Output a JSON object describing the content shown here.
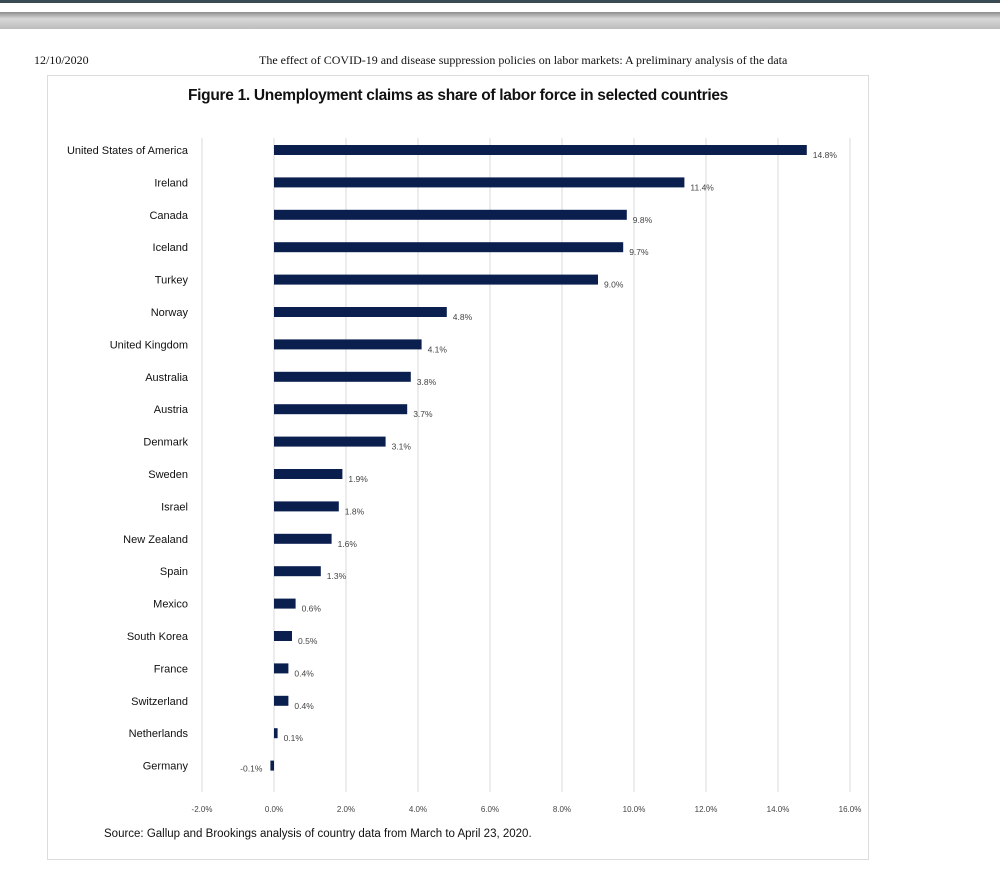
{
  "header": {
    "date": "12/10/2020",
    "doc_title": "The effect of COVID-19 and disease suppression policies on labor markets: A preliminary analysis of the data"
  },
  "colors": {
    "bar": "#0b1f4f",
    "grid": "#d9d9d9"
  },
  "chart_data": {
    "type": "bar",
    "orientation": "horizontal",
    "title": "Figure 1. Unemployment claims as share of labor force in selected countries",
    "categories": [
      "United States of America",
      "Ireland",
      "Canada",
      "Iceland",
      "Turkey",
      "Norway",
      "United Kingdom",
      "Australia",
      "Austria",
      "Denmark",
      "Sweden",
      "Israel",
      "New Zealand",
      "Spain",
      "Mexico",
      "South Korea",
      "France",
      "Switzerland",
      "Netherlands",
      "Germany"
    ],
    "values": [
      14.8,
      11.4,
      9.8,
      9.7,
      9.0,
      4.8,
      4.1,
      3.8,
      3.7,
      3.1,
      1.9,
      1.8,
      1.6,
      1.3,
      0.6,
      0.5,
      0.4,
      0.4,
      0.1,
      -0.1
    ],
    "data_labels": [
      "14.8%",
      "11.4%",
      "9.8%",
      "9.7%",
      "9.0%",
      "4.8%",
      "4.1%",
      "3.8%",
      "3.7%",
      "3.1%",
      "1.9%",
      "1.8%",
      "1.6%",
      "1.3%",
      "0.6%",
      "0.5%",
      "0.4%",
      "0.4%",
      "0.1%",
      "-0.1%"
    ],
    "xlim": [
      -2,
      16
    ],
    "xticks": [
      -2,
      0,
      2,
      4,
      6,
      8,
      10,
      12,
      14,
      16
    ],
    "xtick_labels": [
      "-2.0%",
      "0.0%",
      "2.0%",
      "4.0%",
      "6.0%",
      "8.0%",
      "10.0%",
      "12.0%",
      "14.0%",
      "16.0%"
    ],
    "xlabel": "",
    "ylabel": "",
    "grid": "vertical",
    "legend": "none"
  },
  "source": "Source:  Gallup and Brookings analysis of country data from March to April 23, 2020."
}
